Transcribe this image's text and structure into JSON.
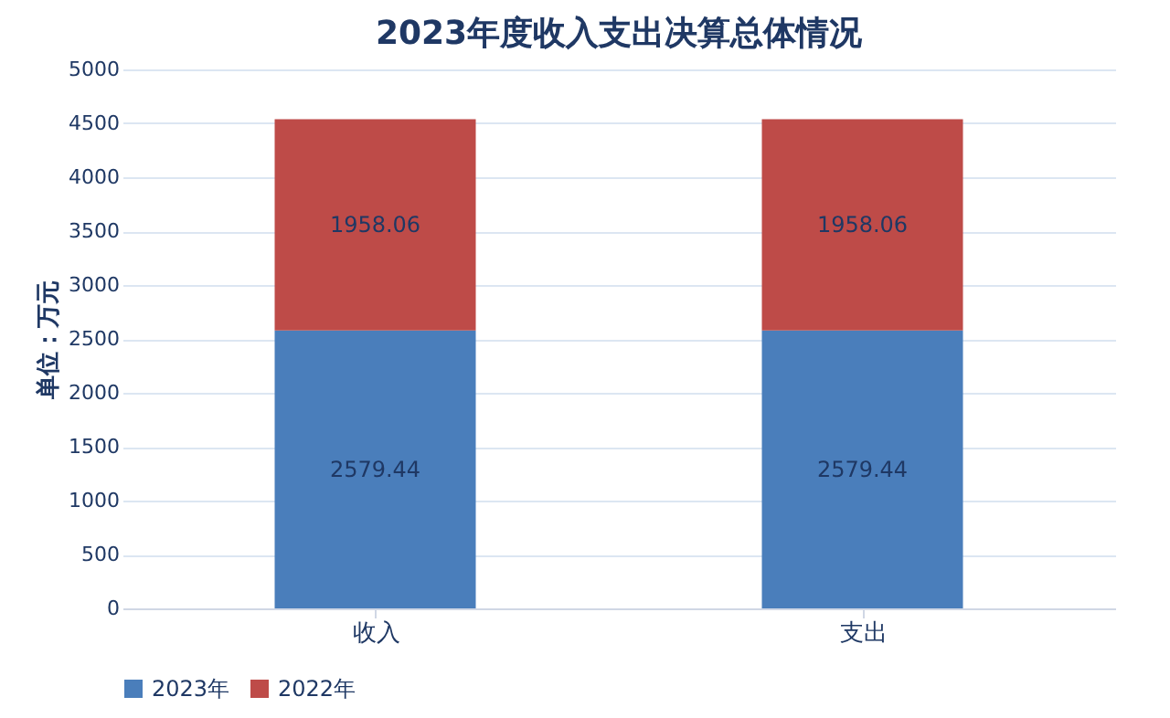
{
  "chart_data": {
    "type": "bar",
    "title": "2023年度收入支出决算总体情况",
    "ylabel": "单位：万元",
    "categories": [
      "收入",
      "支出"
    ],
    "stacked": true,
    "series": [
      {
        "name": "2023年",
        "color": "#4a7ebb",
        "values": [
          2579.44,
          2579.44
        ]
      },
      {
        "name": "2022年",
        "color": "#be4b48",
        "values": [
          1958.06,
          1958.06
        ]
      }
    ],
    "ylim": [
      0,
      5000
    ],
    "yticks": [
      0,
      500,
      1000,
      1500,
      2000,
      2500,
      3000,
      3500,
      4000,
      4500,
      5000
    ],
    "grid": "y",
    "legend": "bottom",
    "data_labels": true
  }
}
